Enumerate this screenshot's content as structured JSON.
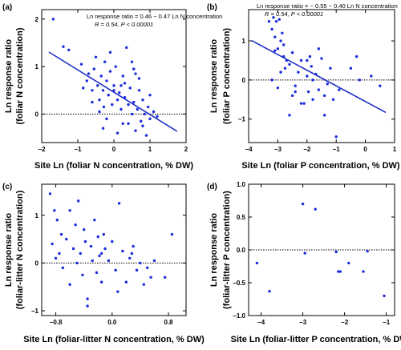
{
  "chart_data": [
    {
      "type": "scatter",
      "panel": "(a)",
      "xlabel": "Site Ln (foliar N concentration, % DW)",
      "ylabel_line1": "Ln response ratio",
      "ylabel_line2": "(foliar N concentration)",
      "xlim": [
        -2,
        2
      ],
      "ylim": [
        -0.6,
        2.2
      ],
      "xticks": [
        {
          "v": -2,
          "label": "−2"
        },
        {
          "v": -1,
          "label": "−1"
        },
        {
          "v": 0,
          "label": "0"
        },
        {
          "v": 1,
          "label": "1"
        },
        {
          "v": 2,
          "label": "2"
        }
      ],
      "yticks": [
        {
          "v": 0,
          "label": "0"
        },
        {
          "v": 1,
          "label": "1"
        },
        {
          "v": 2,
          "label": "2"
        }
      ],
      "annotation_line1": "Ln response ratio = 0.46 − 0.47 Ln N concentration",
      "annotation_line2": "R = 0.54, P < 0.00001",
      "fit": {
        "intercept": 0.46,
        "slope": -0.47,
        "x_range": [
          -1.8,
          1.75
        ]
      },
      "x": [
        -1.68,
        -1.4,
        -1.25,
        -0.9,
        -0.85,
        -0.75,
        -0.7,
        -0.6,
        -0.55,
        -0.5,
        -0.45,
        -0.4,
        -0.35,
        -0.3,
        -0.28,
        -0.25,
        -0.2,
        -0.15,
        -0.1,
        -0.05,
        0.0,
        0.05,
        0.1,
        0.15,
        0.2,
        0.25,
        0.3,
        0.35,
        0.4,
        0.45,
        0.5,
        0.55,
        0.6,
        0.65,
        0.7,
        0.75,
        0.8,
        0.85,
        0.9,
        0.95,
        1.0,
        1.1,
        1.2,
        -0.6,
        -0.3,
        -0.1,
        0.1,
        0.3,
        0.5,
        0.7,
        -0.2,
        0.0,
        0.2,
        0.4,
        0.6,
        0.8,
        1.0,
        -0.4,
        0.25,
        0.55
      ],
      "y": [
        2.0,
        1.42,
        1.35,
        1.05,
        0.55,
        0.7,
        0.85,
        0.5,
        0.95,
        1.2,
        0.6,
        0.3,
        0.8,
        0.5,
        0.15,
        1.1,
        0.7,
        0.4,
        0.9,
        0.2,
        0.6,
        1.0,
        0.3,
        0.45,
        0.1,
        0.8,
        0.35,
        1.4,
        -0.2,
        0.55,
        0.0,
        0.25,
        -0.35,
        0.1,
        0.5,
        -0.15,
        0.3,
        0.0,
        -0.45,
        0.15,
        -0.1,
        0.05,
        -0.05,
        0.25,
        -0.3,
        1.3,
        -0.4,
        0.65,
        1.1,
        0.75,
        -0.1,
        0.5,
        0.6,
        0.2,
        0.85,
        -0.25,
        0.4,
        0.05,
        -0.2,
        0.95
      ]
    },
    {
      "type": "scatter",
      "panel": "(b)",
      "xlabel": "Site Ln (foliar P concentration, % DW)",
      "ylabel_line1": "Ln response ratio",
      "ylabel_line2": "(foliar P concentration)",
      "xlim": [
        -4,
        1
      ],
      "ylim": [
        -1.6,
        1.8
      ],
      "xticks": [
        {
          "v": -4,
          "label": "−4"
        },
        {
          "v": -3,
          "label": "−3"
        },
        {
          "v": -2,
          "label": "−2"
        },
        {
          "v": -1,
          "label": "−1"
        },
        {
          "v": 0,
          "label": "0"
        },
        {
          "v": 1,
          "label": "1"
        }
      ],
      "yticks": [
        {
          "v": -1,
          "label": "−1"
        },
        {
          "v": 0,
          "label": "0"
        },
        {
          "v": 1,
          "label": "1"
        }
      ],
      "annotation_line1": "Ln response ratio = − 0.55 − 0.40 Ln N concentration",
      "annotation_line2": "R = 0.54, P < 0.00001",
      "fit": {
        "intercept": -0.55,
        "slope": -0.4,
        "x_range": [
          -3.9,
          0.7
        ]
      },
      "x": [
        -3.3,
        -3.2,
        -3.15,
        -3.1,
        -3.05,
        -3.0,
        -2.95,
        -2.9,
        -2.85,
        -2.8,
        -2.75,
        -2.7,
        -2.6,
        -2.5,
        -2.4,
        -2.3,
        -2.2,
        -2.1,
        -2.0,
        -1.95,
        -1.9,
        -1.85,
        -1.8,
        -1.7,
        -1.6,
        -1.5,
        -1.4,
        -1.3,
        -1.2,
        -1.1,
        -1.0,
        -0.9,
        -0.5,
        -0.3,
        -0.2,
        0.2,
        0.5,
        -3.2,
        -3.0,
        -2.8,
        -2.6,
        -2.4,
        -2.2,
        -2.0,
        -1.8,
        -1.6,
        -1.4,
        -3.1,
        -2.9,
        -2.5
      ],
      "y": [
        1.5,
        1.3,
        1.6,
        1.1,
        1.5,
        0.8,
        1.55,
        1.0,
        1.2,
        0.6,
        0.3,
        0.5,
        0.4,
        0.7,
        -0.15,
        0.2,
        0.5,
        -0.6,
        0.1,
        -0.3,
        0.6,
        0.35,
        0.0,
        0.15,
        -0.25,
        0.55,
        -0.4,
        -0.1,
        0.3,
        -0.5,
        -1.45,
        -0.25,
        0.3,
        0.6,
        0.0,
        0.1,
        -0.15,
        0.0,
        -0.2,
        0.9,
        -0.9,
        -0.3,
        -0.6,
        0.5,
        -0.5,
        0.8,
        -0.9,
        0.75,
        0.2,
        -0.4
      ]
    },
    {
      "type": "scatter",
      "panel": "(c)",
      "xlabel": "Site Ln (foliar-litter N concentration, % DW)",
      "ylabel_line1": "Ln response ratio",
      "ylabel_line2": "(foliar-litter N concentration)",
      "xlim": [
        -1.0,
        1.05
      ],
      "ylim": [
        -1.1,
        1.65
      ],
      "xticks": [
        {
          "v": -0.8,
          "label": "−0.8"
        },
        {
          "v": 0.0,
          "label": "0.0"
        },
        {
          "v": 0.8,
          "label": "0.8"
        }
      ],
      "yticks": [
        {
          "v": -1,
          "label": "−1"
        },
        {
          "v": 0,
          "label": "0"
        },
        {
          "v": 1,
          "label": "1"
        }
      ],
      "x": [
        -0.88,
        -0.85,
        -0.82,
        -0.8,
        -0.78,
        -0.75,
        -0.72,
        -0.7,
        -0.65,
        -0.6,
        -0.55,
        -0.52,
        -0.5,
        -0.48,
        -0.45,
        -0.42,
        -0.4,
        -0.38,
        -0.35,
        -0.3,
        -0.28,
        -0.25,
        -0.22,
        -0.2,
        -0.18,
        -0.15,
        -0.12,
        -0.1,
        -0.05,
        0.0,
        0.05,
        0.1,
        0.15,
        0.2,
        0.25,
        0.3,
        0.35,
        0.4,
        0.45,
        0.5,
        0.55,
        0.6,
        0.75,
        0.85,
        -0.6,
        -0.35,
        -0.15,
        0.08,
        0.28
      ],
      "y": [
        1.45,
        0.4,
        1.1,
        0.1,
        0.9,
        0.2,
        0.6,
        -0.1,
        0.5,
        1.1,
        0.3,
        0.8,
        0.0,
        1.3,
        0.2,
        -0.25,
        0.7,
        0.45,
        -0.75,
        0.35,
        0.05,
        0.9,
        -0.2,
        0.55,
        0.15,
        -0.4,
        0.6,
        0.3,
        0.05,
        0.45,
        -0.15,
        1.25,
        0.25,
        -0.4,
        0.1,
        0.35,
        -0.15,
        0.0,
        -0.45,
        -0.1,
        -0.3,
        0.05,
        -0.3,
        0.6,
        -0.45,
        -0.9,
        0.2,
        -0.6,
        0.2
      ]
    },
    {
      "type": "scatter",
      "panel": "(d)",
      "xlabel": "Site Ln (foliar-litter P concentration, % DW)",
      "ylabel_line1": "Ln response ratio",
      "ylabel_line2": "(foliar-litter P concentration)",
      "xlim": [
        -4.3,
        -0.8
      ],
      "ylim": [
        -1.0,
        1.0
      ],
      "xticks": [
        {
          "v": -4,
          "label": "−4"
        },
        {
          "v": -3,
          "label": "−3"
        },
        {
          "v": -2,
          "label": "−2"
        },
        {
          "v": -1,
          "label": "−1"
        }
      ],
      "yticks": [
        {
          "v": -1.0,
          "label": "−1.0"
        },
        {
          "v": -0.5,
          "label": "−0.5"
        },
        {
          "v": 0.0,
          "label": "0.0"
        },
        {
          "v": 0.5,
          "label": "0.5"
        },
        {
          "v": 1.0,
          "label": "1.0"
        }
      ],
      "x": [
        -4.1,
        -3.8,
        -3.0,
        -2.95,
        -2.7,
        -2.2,
        -2.15,
        -2.1,
        -1.9,
        -1.55,
        -1.45,
        -1.05
      ],
      "y": [
        -0.2,
        -0.63,
        0.7,
        -0.05,
        0.62,
        -0.03,
        -0.33,
        -0.33,
        -0.2,
        -0.33,
        -0.02,
        -0.7
      ]
    }
  ]
}
